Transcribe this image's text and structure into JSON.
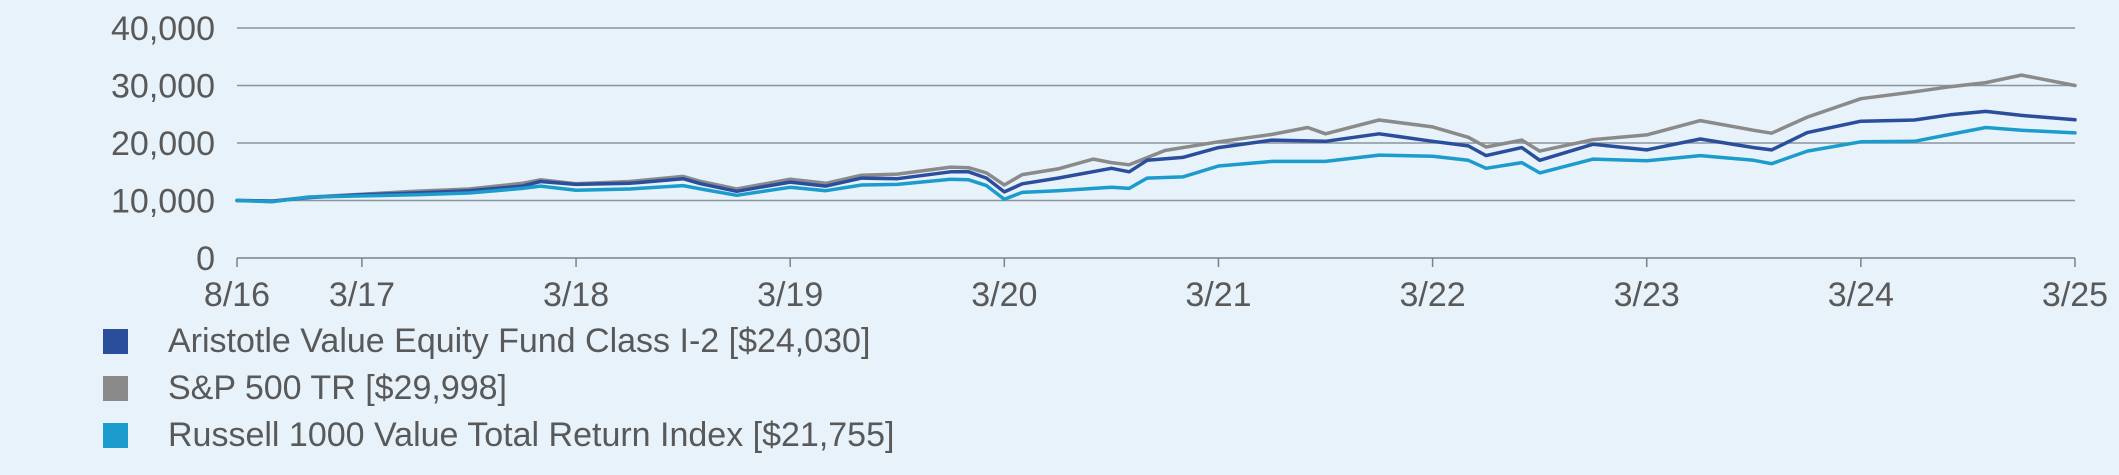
{
  "chart_data": {
    "type": "line",
    "title": "",
    "xlabel": "",
    "ylabel": "",
    "ylim": [
      0,
      40000
    ],
    "yticks": [
      0,
      10000,
      20000,
      30000,
      40000
    ],
    "ytick_labels": [
      "0",
      "10,000",
      "20,000",
      "30,000",
      "40,000"
    ],
    "xlim": [
      "2016-08",
      "2025-03"
    ],
    "xticks": [
      {
        "label": "8/16",
        "date": "2016-08"
      },
      {
        "label": "3/17",
        "date": "2017-03"
      },
      {
        "label": "3/18",
        "date": "2018-03"
      },
      {
        "label": "3/19",
        "date": "2019-03"
      },
      {
        "label": "3/20",
        "date": "2020-03"
      },
      {
        "label": "3/21",
        "date": "2021-03"
      },
      {
        "label": "3/22",
        "date": "2022-03"
      },
      {
        "label": "3/23",
        "date": "2023-03"
      },
      {
        "label": "3/24",
        "date": "2024-03"
      },
      {
        "label": "3/25",
        "date": "2025-03"
      }
    ],
    "grid": "horizontal",
    "legend_position": "bottom-left",
    "series": [
      {
        "name": "Aristotle Value Equity Fund Class I-2 [$24,030]",
        "color": "#2b4e9c",
        "points": [
          [
            "2016-08",
            10000
          ],
          [
            "2016-10",
            9900
          ],
          [
            "2016-12",
            10500
          ],
          [
            "2017-03",
            11000
          ],
          [
            "2017-06",
            11300
          ],
          [
            "2017-09",
            11700
          ],
          [
            "2017-12",
            12500
          ],
          [
            "2018-01",
            13300
          ],
          [
            "2018-03",
            12800
          ],
          [
            "2018-06",
            13000
          ],
          [
            "2018-09",
            13800
          ],
          [
            "2018-10",
            12900
          ],
          [
            "2018-12",
            11600
          ],
          [
            "2019-03",
            13200
          ],
          [
            "2019-05",
            12500
          ],
          [
            "2019-07",
            13900
          ],
          [
            "2019-09",
            13800
          ],
          [
            "2019-12",
            15000
          ],
          [
            "2020-01",
            15000
          ],
          [
            "2020-02",
            13900
          ],
          [
            "2020-03",
            11500
          ],
          [
            "2020-04",
            12900
          ],
          [
            "2020-06",
            13900
          ],
          [
            "2020-09",
            15600
          ],
          [
            "2020-10",
            15000
          ],
          [
            "2020-11",
            17000
          ],
          [
            "2021-01",
            17500
          ],
          [
            "2021-03",
            19200
          ],
          [
            "2021-06",
            20500
          ],
          [
            "2021-09",
            20300
          ],
          [
            "2021-12",
            21600
          ],
          [
            "2022-03",
            20300
          ],
          [
            "2022-05",
            19500
          ],
          [
            "2022-06",
            17800
          ],
          [
            "2022-08",
            19200
          ],
          [
            "2022-09",
            17000
          ],
          [
            "2022-12",
            19800
          ],
          [
            "2023-03",
            18800
          ],
          [
            "2023-06",
            20700
          ],
          [
            "2023-09",
            19200
          ],
          [
            "2023-10",
            18800
          ],
          [
            "2023-12",
            21800
          ],
          [
            "2024-03",
            23800
          ],
          [
            "2024-06",
            24000
          ],
          [
            "2024-08",
            24900
          ],
          [
            "2024-10",
            25500
          ],
          [
            "2024-12",
            24800
          ],
          [
            "2025-03",
            24030
          ]
        ]
      },
      {
        "name": "S&P 500 TR [$29,998]",
        "color": "#8a8a8a",
        "points": [
          [
            "2016-08",
            10000
          ],
          [
            "2016-10",
            9900
          ],
          [
            "2016-12",
            10600
          ],
          [
            "2017-03",
            11100
          ],
          [
            "2017-06",
            11600
          ],
          [
            "2017-09",
            12000
          ],
          [
            "2017-12",
            13000
          ],
          [
            "2018-01",
            13600
          ],
          [
            "2018-03",
            12900
          ],
          [
            "2018-06",
            13300
          ],
          [
            "2018-09",
            14200
          ],
          [
            "2018-10",
            13300
          ],
          [
            "2018-12",
            12000
          ],
          [
            "2019-03",
            13700
          ],
          [
            "2019-05",
            13000
          ],
          [
            "2019-07",
            14400
          ],
          [
            "2019-09",
            14600
          ],
          [
            "2019-12",
            15800
          ],
          [
            "2020-01",
            15700
          ],
          [
            "2020-02",
            14800
          ],
          [
            "2020-03",
            12700
          ],
          [
            "2020-04",
            14500
          ],
          [
            "2020-06",
            15500
          ],
          [
            "2020-08",
            17200
          ],
          [
            "2020-09",
            16600
          ],
          [
            "2020-10",
            16200
          ],
          [
            "2020-12",
            18700
          ],
          [
            "2021-03",
            20200
          ],
          [
            "2021-06",
            21500
          ],
          [
            "2021-08",
            22700
          ],
          [
            "2021-09",
            21600
          ],
          [
            "2021-12",
            24000
          ],
          [
            "2022-03",
            22800
          ],
          [
            "2022-05",
            21000
          ],
          [
            "2022-06",
            19300
          ],
          [
            "2022-08",
            20500
          ],
          [
            "2022-09",
            18600
          ],
          [
            "2022-12",
            20600
          ],
          [
            "2023-03",
            21400
          ],
          [
            "2023-06",
            23900
          ],
          [
            "2023-09",
            22200
          ],
          [
            "2023-10",
            21700
          ],
          [
            "2023-12",
            24500
          ],
          [
            "2024-03",
            27700
          ],
          [
            "2024-06",
            28900
          ],
          [
            "2024-08",
            29800
          ],
          [
            "2024-10",
            30500
          ],
          [
            "2024-12",
            31800
          ],
          [
            "2025-03",
            29998
          ]
        ]
      },
      {
        "name": "Russell 1000 Value Total Return Index [$21,755]",
        "color": "#1b9ccc",
        "points": [
          [
            "2016-08",
            10000
          ],
          [
            "2016-10",
            9800
          ],
          [
            "2016-12",
            10600
          ],
          [
            "2017-03",
            10800
          ],
          [
            "2017-06",
            11000
          ],
          [
            "2017-09",
            11300
          ],
          [
            "2017-12",
            12100
          ],
          [
            "2018-01",
            12500
          ],
          [
            "2018-03",
            11800
          ],
          [
            "2018-06",
            12000
          ],
          [
            "2018-09",
            12600
          ],
          [
            "2018-10",
            12000
          ],
          [
            "2018-12",
            10900
          ],
          [
            "2019-03",
            12300
          ],
          [
            "2019-05",
            11700
          ],
          [
            "2019-07",
            12700
          ],
          [
            "2019-09",
            12800
          ],
          [
            "2019-12",
            13700
          ],
          [
            "2020-01",
            13600
          ],
          [
            "2020-02",
            12600
          ],
          [
            "2020-03",
            10200
          ],
          [
            "2020-04",
            11400
          ],
          [
            "2020-06",
            11700
          ],
          [
            "2020-09",
            12300
          ],
          [
            "2020-10",
            12100
          ],
          [
            "2020-11",
            13900
          ],
          [
            "2021-01",
            14100
          ],
          [
            "2021-03",
            16000
          ],
          [
            "2021-06",
            16800
          ],
          [
            "2021-09",
            16800
          ],
          [
            "2021-12",
            17900
          ],
          [
            "2022-03",
            17700
          ],
          [
            "2022-05",
            17000
          ],
          [
            "2022-06",
            15600
          ],
          [
            "2022-08",
            16600
          ],
          [
            "2022-09",
            14800
          ],
          [
            "2022-12",
            17200
          ],
          [
            "2023-03",
            16900
          ],
          [
            "2023-06",
            17800
          ],
          [
            "2023-09",
            17000
          ],
          [
            "2023-10",
            16400
          ],
          [
            "2023-12",
            18600
          ],
          [
            "2024-03",
            20200
          ],
          [
            "2024-06",
            20300
          ],
          [
            "2024-08",
            21500
          ],
          [
            "2024-10",
            22700
          ],
          [
            "2024-12",
            22200
          ],
          [
            "2025-03",
            21755
          ]
        ]
      }
    ]
  }
}
